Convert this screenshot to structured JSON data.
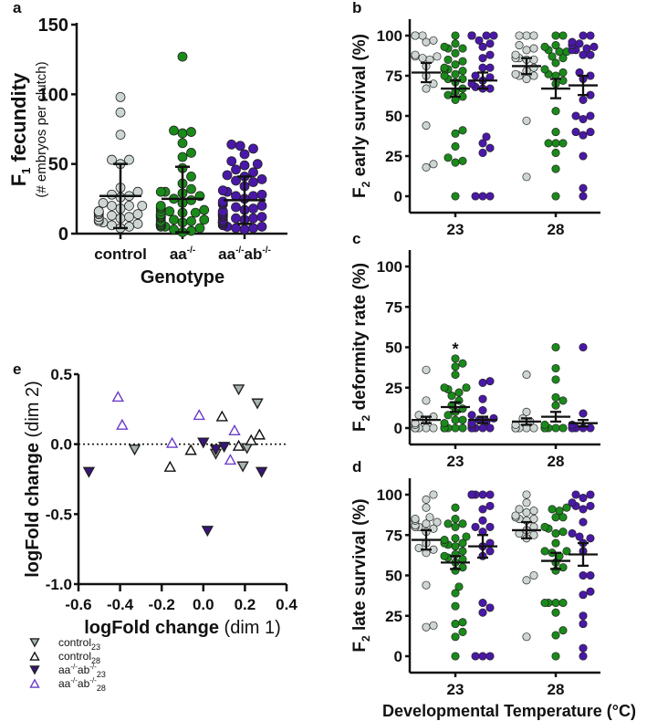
{
  "colors": {
    "control": "#cdd6d2",
    "aa": "#1a8a1a",
    "aaab": "#4a18a8",
    "control_tri": "#a9b4b0",
    "aaab23_tri": "#3a1380",
    "aaab28_tri": "#6a3cc8",
    "black": "#111111"
  },
  "chart_data": [
    {
      "panel": "a",
      "type": "scatter",
      "panel_label": "a",
      "ylabel_main": "F",
      "ylabel_sub": "1",
      "ylabel_rest": " fecundity",
      "ylabel2": "(# embryos per clutch)",
      "xlabel": "Genotype",
      "ylim": [
        0,
        150
      ],
      "yticks": [
        "0",
        "50",
        "100",
        "150"
      ],
      "ytick_values": [
        0,
        50,
        100,
        150
      ],
      "categories": [
        {
          "base": "control",
          "sup1": "",
          "mid": "",
          "sup2": ""
        },
        {
          "base": "aa",
          "sup1": "-/-",
          "mid": "",
          "sup2": ""
        },
        {
          "base": "aa",
          "sup1": "-/-",
          "mid": "ab",
          "sup2": "-/-"
        }
      ],
      "series": [
        {
          "name": "control",
          "color_key": "control",
          "mean": 27,
          "sd_low": 4,
          "sd_high": 50,
          "values": [
            98,
            87,
            71,
            53,
            53,
            50,
            33,
            30,
            28,
            27,
            26,
            22,
            20,
            20,
            20,
            18,
            16,
            16,
            15,
            15,
            14,
            14,
            13,
            12,
            12,
            11,
            10,
            9,
            8,
            7,
            6,
            5,
            4
          ]
        },
        {
          "name": "aa-/-",
          "color_key": "aa",
          "mean": 25,
          "sd_low": 1,
          "sd_high": 48,
          "values": [
            127,
            74,
            73,
            72,
            65,
            58,
            55,
            47,
            41,
            36,
            32,
            30,
            30,
            29,
            27,
            25,
            24,
            22,
            20,
            19,
            18,
            17,
            16,
            16,
            15,
            15,
            14,
            14,
            13,
            13,
            12,
            12,
            11,
            10,
            10,
            9,
            9,
            8,
            8,
            7,
            7,
            6,
            6,
            6,
            5,
            5,
            4,
            3,
            2,
            1
          ]
        },
        {
          "name": "aa-/-ab-/-",
          "color_key": "aaab",
          "mean": 24,
          "sd_low": 7,
          "sd_high": 41,
          "values": [
            64,
            63,
            61,
            57,
            52,
            50,
            49,
            46,
            44,
            42,
            41,
            39,
            38,
            37,
            34,
            31,
            30,
            28,
            27,
            27,
            25,
            23,
            22,
            21,
            20,
            19,
            18,
            17,
            16,
            16,
            15,
            14,
            14,
            13,
            13,
            12,
            12,
            11,
            11,
            10,
            10,
            9,
            9,
            8,
            8,
            8,
            7,
            6,
            5,
            5,
            4,
            4,
            3
          ]
        }
      ]
    },
    {
      "panel": "b",
      "type": "scatter",
      "panel_label": "b",
      "ylabel_main": "F",
      "ylabel_sub": "2",
      "ylabel_rest": " early survival (%)",
      "ylim": [
        0,
        100
      ],
      "yticks": [
        "0",
        "25",
        "50",
        "75",
        "100"
      ],
      "ytick_values": [
        0,
        25,
        50,
        75,
        100
      ],
      "xticks": [
        "23",
        "28"
      ],
      "groups": [
        {
          "temp": "23",
          "genotype": "control",
          "color_key": "control",
          "mean": 77,
          "sem": 6,
          "values": [
            100,
            100,
            100,
            100,
            97,
            96,
            88,
            87,
            87,
            86,
            85,
            81,
            75,
            70,
            67,
            44,
            20,
            18
          ]
        },
        {
          "temp": "23",
          "genotype": "aa-/-",
          "color_key": "aa",
          "mean": 67,
          "sem": 5,
          "values": [
            100,
            95,
            93,
            92,
            92,
            89,
            85,
            84,
            82,
            80,
            79,
            79,
            78,
            76,
            75,
            73,
            73,
            71,
            67,
            65,
            63,
            62,
            60,
            41,
            39,
            31,
            24,
            22,
            21,
            0
          ]
        },
        {
          "temp": "23",
          "genotype": "aa-/-ab-/-",
          "color_key": "aaab",
          "mean": 72,
          "sem": 5,
          "values": [
            100,
            100,
            100,
            100,
            100,
            100,
            100,
            97,
            95,
            93,
            88,
            86,
            80,
            80,
            75,
            74,
            72,
            70,
            68,
            67,
            67,
            37,
            33,
            30,
            27,
            0,
            0,
            0
          ]
        },
        {
          "temp": "28",
          "genotype": "control",
          "color_key": "control",
          "mean": 81,
          "sem": 5,
          "values": [
            100,
            100,
            100,
            94,
            92,
            91,
            88,
            86,
            86,
            85,
            85,
            80,
            78,
            76,
            75,
            75,
            73,
            47,
            12
          ]
        },
        {
          "temp": "28",
          "genotype": "aa-/-",
          "color_key": "aa",
          "mean": 67,
          "sem": 6,
          "values": [
            100,
            100,
            94,
            93,
            91,
            90,
            90,
            87,
            86,
            83,
            79,
            77,
            76,
            75,
            72,
            70,
            53,
            40,
            33,
            33,
            33,
            27,
            17,
            0
          ]
        },
        {
          "temp": "28",
          "genotype": "aa-/-ab-/-",
          "color_key": "aaab",
          "mean": 69,
          "sem": 6,
          "values": [
            100,
            100,
            96,
            95,
            94,
            94,
            93,
            92,
            91,
            91,
            88,
            88,
            77,
            75,
            73,
            63,
            60,
            50,
            50,
            48,
            40,
            40,
            38,
            25,
            5,
            0
          ]
        }
      ]
    },
    {
      "panel": "c",
      "type": "scatter",
      "panel_label": "c",
      "ylabel_main": "F",
      "ylabel_sub": "2",
      "ylabel_rest": " deformity rate (%)",
      "ylim": [
        0,
        100
      ],
      "yticks": [
        "0",
        "25",
        "50",
        "75",
        "100"
      ],
      "ytick_values": [
        0,
        25,
        50,
        75,
        100
      ],
      "xticks": [
        "23",
        "28"
      ],
      "annotation": {
        "text": "*",
        "temp": "23",
        "genotype": "aa-/-",
        "value": 50
      },
      "groups": [
        {
          "temp": "23",
          "genotype": "control",
          "color_key": "control",
          "mean": 5,
          "sem": 2,
          "values": [
            36,
            17,
            8,
            7,
            5,
            3,
            2,
            0,
            0,
            0,
            0,
            0,
            0,
            0,
            0
          ]
        },
        {
          "temp": "23",
          "genotype": "aa-/-",
          "color_key": "aa",
          "mean": 13,
          "sem": 3,
          "values": [
            43,
            40,
            38,
            33,
            25,
            25,
            24,
            22,
            20,
            17,
            14,
            12,
            10,
            8,
            5,
            5,
            3,
            0,
            0,
            0,
            0,
            0,
            0,
            0,
            0,
            0,
            0
          ]
        },
        {
          "temp": "23",
          "genotype": "aa-/-ab-/-",
          "color_key": "aaab",
          "mean": 5,
          "sem": 2,
          "values": [
            29,
            28,
            18,
            11,
            8,
            6,
            5,
            4,
            3,
            2,
            0,
            0,
            0,
            0,
            0,
            0,
            0,
            0,
            0
          ]
        },
        {
          "temp": "28",
          "genotype": "control",
          "color_key": "control",
          "mean": 4,
          "sem": 2,
          "values": [
            33,
            10,
            6,
            4,
            2,
            0,
            0,
            0,
            0,
            0,
            0,
            0
          ]
        },
        {
          "temp": "28",
          "genotype": "aa-/-",
          "color_key": "aa",
          "mean": 7,
          "sem": 3,
          "values": [
            50,
            37,
            30,
            19,
            17,
            14,
            2,
            0,
            0,
            0,
            0,
            0,
            0,
            0
          ]
        },
        {
          "temp": "28",
          "genotype": "aa-/-ab-/-",
          "color_key": "aaab",
          "mean": 3,
          "sem": 2,
          "values": [
            50,
            9,
            2,
            0,
            0,
            0,
            0,
            0,
            0
          ]
        }
      ]
    },
    {
      "panel": "d",
      "type": "scatter",
      "panel_label": "d",
      "ylabel_main": "F",
      "ylabel_sub": "2",
      "ylabel_rest": " late survival (%)",
      "xlabel": "Developmental Temperature (°C)",
      "ylim": [
        0,
        100
      ],
      "yticks": [
        "0",
        "25",
        "50",
        "75",
        "100"
      ],
      "ytick_values": [
        0,
        25,
        50,
        75,
        100
      ],
      "xticks": [
        "23",
        "28"
      ],
      "groups": [
        {
          "temp": "23",
          "genotype": "control",
          "color_key": "control",
          "mean": 72,
          "sem": 6,
          "values": [
            100,
            97,
            92,
            86,
            85,
            84,
            83,
            82,
            81,
            80,
            80,
            79,
            77,
            70,
            67,
            66,
            64,
            44,
            19,
            18
          ]
        },
        {
          "temp": "23",
          "genotype": "aa-/-",
          "color_key": "aa",
          "mean": 58,
          "sem": 4,
          "values": [
            92,
            85,
            82,
            82,
            80,
            74,
            73,
            72,
            70,
            70,
            69,
            68,
            65,
            63,
            62,
            61,
            60,
            58,
            55,
            53,
            43,
            39,
            31,
            21,
            20,
            15,
            12,
            0
          ]
        },
        {
          "temp": "23",
          "genotype": "aa-/-ab-/-",
          "color_key": "aaab",
          "mean": 68,
          "sem": 7,
          "values": [
            100,
            100,
            100,
            100,
            100,
            100,
            100,
            93,
            91,
            84,
            80,
            80,
            77,
            70,
            68,
            65,
            62,
            33,
            30,
            27,
            0,
            0,
            0
          ]
        },
        {
          "temp": "28",
          "genotype": "control",
          "color_key": "control",
          "mean": 78,
          "sem": 5,
          "values": [
            100,
            95,
            91,
            90,
            89,
            87,
            86,
            85,
            85,
            84,
            80,
            78,
            76,
            75,
            73,
            50,
            47,
            12
          ]
        },
        {
          "temp": "28",
          "genotype": "aa-/-",
          "color_key": "aa",
          "mean": 59,
          "sem": 5,
          "values": [
            92,
            91,
            90,
            86,
            86,
            80,
            79,
            77,
            76,
            70,
            65,
            65,
            64,
            62,
            58,
            55,
            53,
            33,
            33,
            33,
            33,
            27,
            16,
            13,
            0
          ]
        },
        {
          "temp": "28",
          "genotype": "aa-/-ab-/-",
          "color_key": "aaab",
          "mean": 63,
          "sem": 7,
          "values": [
            100,
            100,
            98,
            95,
            93,
            93,
            91,
            83,
            76,
            74,
            73,
            70,
            65,
            50,
            50,
            40,
            38,
            25,
            20,
            5,
            0
          ]
        }
      ]
    },
    {
      "panel": "e",
      "type": "scatter",
      "panel_label": "e",
      "xlabel_bold": "logFold change",
      "xlabel_rest": " (dim 1)",
      "ylabel_bold": "logFold change",
      "ylabel_rest": " (dim 2)",
      "xlim": [
        -0.6,
        0.4
      ],
      "ylim": [
        -1.0,
        0.5
      ],
      "xticks": [
        "-0.6",
        "-0.4",
        "-0.2",
        "0.0",
        "0.2",
        "0.4"
      ],
      "xtick_values": [
        -0.6,
        -0.4,
        -0.2,
        0.0,
        0.2,
        0.4
      ],
      "yticks": [
        "-1.0",
        "-0.5",
        "0.0",
        "0.5"
      ],
      "ytick_values": [
        -1.0,
        -0.5,
        0.0,
        0.5
      ],
      "reference_line_y": 0.0,
      "series": [
        {
          "name": "control",
          "sub": "23",
          "sup": "",
          "marker": "down-filled",
          "color_key": "control_tri",
          "points": [
            [
              -0.33,
              -0.04
            ],
            [
              0.06,
              -0.07
            ],
            [
              0.17,
              0.39
            ],
            [
              0.21,
              -0.03
            ],
            [
              0.19,
              -0.16
            ],
            [
              0.26,
              0.29
            ]
          ]
        },
        {
          "name": "control",
          "sub": "28",
          "sup": "",
          "marker": "up-open",
          "color_key": "black",
          "points": [
            [
              -0.16,
              -0.16
            ],
            [
              -0.06,
              -0.04
            ],
            [
              0.09,
              0.2
            ],
            [
              0.17,
              -0.01
            ],
            [
              0.23,
              0.03
            ],
            [
              0.27,
              0.07
            ]
          ]
        },
        {
          "name": "aa",
          "sup": "-/-",
          "name2": "ab",
          "sub": "23",
          "marker": "down-filled",
          "color_key": "aaab23_tri",
          "points": [
            [
              -0.55,
              -0.2
            ],
            [
              0.0,
              0.01
            ],
            [
              0.06,
              -0.04
            ],
            [
              0.1,
              -0.02
            ],
            [
              0.02,
              -0.62
            ],
            [
              0.28,
              -0.2
            ]
          ]
        },
        {
          "name": "aa",
          "sup": "-/-",
          "name2": "ab",
          "sub": "28",
          "marker": "up-open",
          "color_key": "aaab28_tri",
          "points": [
            [
              -0.41,
              0.34
            ],
            [
              -0.39,
              0.14
            ],
            [
              -0.15,
              0.01
            ],
            [
              -0.02,
              0.21
            ],
            [
              0.13,
              -0.11
            ],
            [
              0.15,
              0.1
            ]
          ]
        }
      ]
    }
  ]
}
